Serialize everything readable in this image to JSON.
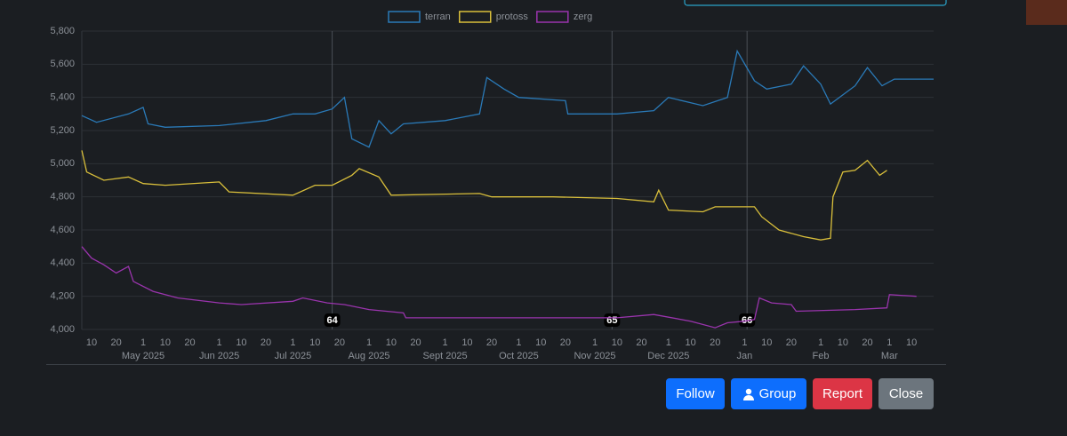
{
  "chart_data": {
    "type": "line",
    "xlim": [
      "2025-04-06",
      "2026-03-19"
    ],
    "ylim": [
      4000,
      5800
    ],
    "yticks": [
      {
        "value": 4000,
        "label": "4,000"
      },
      {
        "value": 4200,
        "label": "4,200"
      },
      {
        "value": 4400,
        "label": "4,400"
      },
      {
        "value": 4600,
        "label": "4,600"
      },
      {
        "value": 4800,
        "label": "4,800"
      },
      {
        "value": 5000,
        "label": "5,000"
      },
      {
        "value": 5200,
        "label": "5,200"
      },
      {
        "value": 5400,
        "label": "5,400"
      },
      {
        "value": 5600,
        "label": "5,600"
      },
      {
        "value": 5800,
        "label": "5,800"
      }
    ],
    "xticks": [
      {
        "value": "2025-04-10",
        "label": "10"
      },
      {
        "value": "2025-04-20",
        "label": "20"
      },
      {
        "value": "2025-05-01",
        "label": "1",
        "month": "May 2025"
      },
      {
        "value": "2025-05-10",
        "label": "10"
      },
      {
        "value": "2025-05-20",
        "label": "20"
      },
      {
        "value": "2025-06-01",
        "label": "1",
        "month": "Jun 2025"
      },
      {
        "value": "2025-06-10",
        "label": "10"
      },
      {
        "value": "2025-06-20",
        "label": "20"
      },
      {
        "value": "2025-07-01",
        "label": "1",
        "month": "Jul 2025"
      },
      {
        "value": "2025-07-10",
        "label": "10"
      },
      {
        "value": "2025-07-20",
        "label": "20"
      },
      {
        "value": "2025-08-01",
        "label": "1",
        "month": "Aug 2025"
      },
      {
        "value": "2025-08-10",
        "label": "10"
      },
      {
        "value": "2025-08-20",
        "label": "20"
      },
      {
        "value": "2025-09-01",
        "label": "1",
        "month": "Sept 2025"
      },
      {
        "value": "2025-09-10",
        "label": "10"
      },
      {
        "value": "2025-09-20",
        "label": "20"
      },
      {
        "value": "2025-10-01",
        "label": "1",
        "month": "Oct 2025"
      },
      {
        "value": "2025-10-10",
        "label": "10"
      },
      {
        "value": "2025-10-20",
        "label": "20"
      },
      {
        "value": "2025-11-01",
        "label": "1",
        "month": "Nov 2025"
      },
      {
        "value": "2025-11-10",
        "label": "10"
      },
      {
        "value": "2025-11-20",
        "label": "20"
      },
      {
        "value": "2025-12-01",
        "label": "1",
        "month": "Dec 2025"
      },
      {
        "value": "2025-12-10",
        "label": "10"
      },
      {
        "value": "2025-12-20",
        "label": "20"
      },
      {
        "value": "2026-01-01",
        "label": "1",
        "month": "Jan"
      },
      {
        "value": "2026-01-10",
        "label": "10"
      },
      {
        "value": "2026-01-20",
        "label": "20"
      },
      {
        "value": "2026-02-01",
        "label": "1",
        "month": "Feb"
      },
      {
        "value": "2026-02-10",
        "label": "10"
      },
      {
        "value": "2026-02-20",
        "label": "20"
      },
      {
        "value": "2026-03-01",
        "label": "1",
        "month": "Mar"
      },
      {
        "value": "2026-03-10",
        "label": "10"
      }
    ],
    "grid": true,
    "markers": [
      {
        "x": "2025-07-17",
        "label": "64"
      },
      {
        "x": "2025-11-08",
        "label": "65"
      },
      {
        "x": "2026-01-02",
        "label": "66"
      }
    ],
    "series": [
      {
        "name": "terran",
        "color": "#2a7ab8",
        "x": [
          "2025-04-06",
          "2025-04-12",
          "2025-04-25",
          "2025-05-01",
          "2025-05-03",
          "2025-05-10",
          "2025-06-01",
          "2025-06-20",
          "2025-07-01",
          "2025-07-10",
          "2025-07-17",
          "2025-07-22",
          "2025-07-25",
          "2025-08-01",
          "2025-08-05",
          "2025-08-10",
          "2025-08-15",
          "2025-09-01",
          "2025-09-15",
          "2025-09-18",
          "2025-09-25",
          "2025-10-01",
          "2025-10-20",
          "2025-10-21",
          "2025-11-10",
          "2025-11-25",
          "2025-12-01",
          "2025-12-15",
          "2025-12-25",
          "2025-12-29",
          "2026-01-05",
          "2026-01-10",
          "2026-01-20",
          "2026-01-25",
          "2026-02-01",
          "2026-02-05",
          "2026-02-15",
          "2026-02-20",
          "2026-02-26",
          "2026-03-03",
          "2026-03-19"
        ],
        "values": [
          5290,
          5250,
          5300,
          5340,
          5240,
          5220,
          5230,
          5260,
          5300,
          5300,
          5330,
          5400,
          5150,
          5100,
          5260,
          5180,
          5240,
          5260,
          5300,
          5520,
          5450,
          5400,
          5380,
          5300,
          5300,
          5320,
          5400,
          5350,
          5400,
          5680,
          5500,
          5450,
          5480,
          5590,
          5480,
          5360,
          5470,
          5580,
          5470,
          5510,
          5510
        ]
      },
      {
        "name": "protoss",
        "color": "#d9bf3b",
        "x": [
          "2025-04-06",
          "2025-04-08",
          "2025-04-15",
          "2025-04-25",
          "2025-05-01",
          "2025-05-10",
          "2025-06-01",
          "2025-06-05",
          "2025-07-01",
          "2025-07-10",
          "2025-07-17",
          "2025-07-25",
          "2025-07-28",
          "2025-08-05",
          "2025-08-10",
          "2025-09-15",
          "2025-09-20",
          "2025-10-15",
          "2025-11-10",
          "2025-11-25",
          "2025-11-27",
          "2025-12-01",
          "2025-12-15",
          "2025-12-20",
          "2026-01-05",
          "2026-01-08",
          "2026-01-15",
          "2026-01-25",
          "2026-02-01",
          "2026-02-05",
          "2026-02-06",
          "2026-02-10",
          "2026-02-15",
          "2026-02-20",
          "2026-02-25",
          "2026-02-28"
        ],
        "values": [
          5080,
          4950,
          4900,
          4920,
          4880,
          4870,
          4890,
          4830,
          4810,
          4870,
          4870,
          4930,
          4970,
          4920,
          4810,
          4820,
          4800,
          4800,
          4790,
          4770,
          4840,
          4720,
          4710,
          4740,
          4740,
          4680,
          4600,
          4560,
          4540,
          4550,
          4800,
          4950,
          4960,
          5020,
          4930,
          4960
        ]
      },
      {
        "name": "zerg",
        "color": "#9a34ad",
        "x": [
          "2025-04-06",
          "2025-04-10",
          "2025-04-15",
          "2025-04-20",
          "2025-04-25",
          "2025-04-27",
          "2025-05-05",
          "2025-05-15",
          "2025-06-01",
          "2025-06-10",
          "2025-07-01",
          "2025-07-05",
          "2025-07-15",
          "2025-07-22",
          "2025-08-01",
          "2025-08-15",
          "2025-08-16",
          "2025-10-01",
          "2025-11-10",
          "2025-11-25",
          "2025-12-10",
          "2025-12-20",
          "2025-12-25",
          "2026-01-01",
          "2026-01-05",
          "2026-01-07",
          "2026-01-12",
          "2026-01-20",
          "2026-01-22",
          "2026-02-15",
          "2026-02-28",
          "2026-03-01",
          "2026-03-12"
        ],
        "values": [
          4500,
          4430,
          4390,
          4340,
          4380,
          4290,
          4230,
          4190,
          4160,
          4150,
          4170,
          4190,
          4160,
          4150,
          4120,
          4100,
          4070,
          4070,
          4070,
          4090,
          4050,
          4010,
          4040,
          4050,
          4060,
          4190,
          4160,
          4150,
          4110,
          4120,
          4130,
          4210,
          4200
        ]
      }
    ]
  },
  "buttons": [
    "Follow",
    "Group",
    "Report",
    "Close"
  ]
}
